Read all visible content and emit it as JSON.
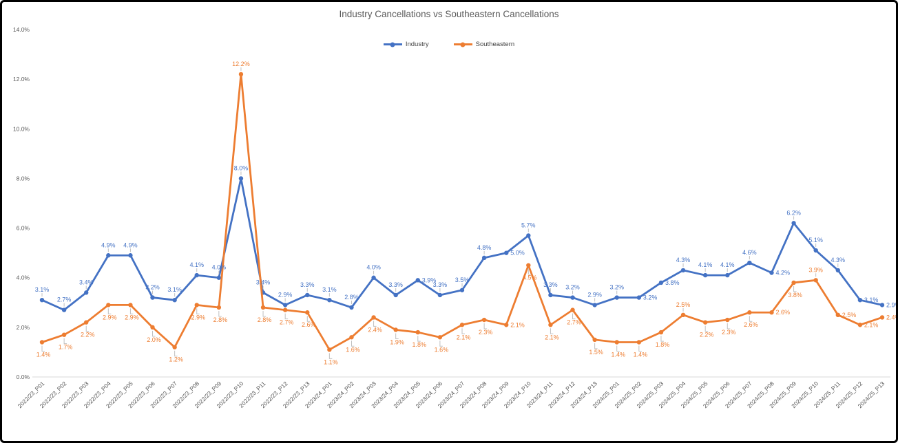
{
  "chart_data": {
    "type": "line",
    "title": "Industry Cancellations vs Southeastern Cancellations",
    "xlabel": "",
    "ylabel": "",
    "ylim": [
      0,
      14
    ],
    "grid": false,
    "legend_position": "top-center",
    "data_labels": true,
    "axis_color": "#595959",
    "leader_line_color": "#BFBFBF",
    "yticks": [
      "0.0%",
      "2.0%",
      "4.0%",
      "6.0%",
      "8.0%",
      "10.0%",
      "12.0%",
      "14.0%"
    ],
    "ytick_values": [
      0,
      2,
      4,
      6,
      8,
      10,
      12,
      14
    ],
    "categories": [
      "2022/23_P01",
      "2022/23_P02",
      "2022/23_P03",
      "2022/23_P04",
      "2022/23_P05",
      "2022/23_P06",
      "2022/23_P07",
      "2022/23_P08",
      "2022/23_P09",
      "2022/23_P10",
      "2022/23_P11",
      "2022/23_P12",
      "2022/23_P13",
      "2023/24_P01",
      "2023/24_P02",
      "2023/24_P03",
      "2023/24_P04",
      "2023/24_P05",
      "2023/24_P06",
      "2023/24_P07",
      "2023/24_P08",
      "2023/24_P09",
      "2023/24_P10",
      "2023/24_P11",
      "2023/24_P12",
      "2023/24_P13",
      "2024/25_P01",
      "2024/25_P02",
      "2024/25_P03",
      "2024/25_P04",
      "2024/25_P05",
      "2024/25_P06",
      "2024/25_P07",
      "2024/25_P08",
      "2024/25_P09",
      "2024/25_P10",
      "2024/25_P11",
      "2024/25_P12",
      "2024/25_P13"
    ],
    "series": [
      {
        "name": "Industry",
        "color": "#4472C4",
        "values": [
          3.1,
          2.7,
          3.4,
          4.9,
          4.9,
          3.2,
          3.1,
          4.1,
          4.0,
          8.0,
          3.4,
          2.9,
          3.3,
          3.1,
          2.8,
          4.0,
          3.3,
          3.9,
          3.3,
          3.5,
          4.8,
          5.0,
          5.7,
          3.3,
          3.2,
          2.9,
          3.2,
          3.2,
          3.8,
          4.3,
          4.1,
          4.1,
          4.6,
          4.2,
          6.2,
          5.1,
          4.3,
          3.1,
          2.9
        ],
        "label_default": "above",
        "label_overrides": {
          "17": "right",
          "21": "right",
          "27": "right",
          "28": "right",
          "33": "right",
          "37": "right",
          "38": "right"
        }
      },
      {
        "name": "Southeastern",
        "color": "#ED7D31",
        "values": [
          1.4,
          1.7,
          2.2,
          2.9,
          2.9,
          2.0,
          1.2,
          2.9,
          2.8,
          12.2,
          2.8,
          2.7,
          2.6,
          1.1,
          1.6,
          2.4,
          1.9,
          1.8,
          1.6,
          2.1,
          2.3,
          2.1,
          4.5,
          2.1,
          2.7,
          1.5,
          1.4,
          1.4,
          1.8,
          2.5,
          2.2,
          2.3,
          2.6,
          2.6,
          3.8,
          3.9,
          2.5,
          2.1,
          2.4
        ],
        "label_default": "below",
        "label_overrides": {
          "9": "above",
          "21": "right",
          "29": "above",
          "33": "right",
          "35": "above",
          "36": "right",
          "37": "right",
          "38": "right"
        }
      }
    ]
  }
}
